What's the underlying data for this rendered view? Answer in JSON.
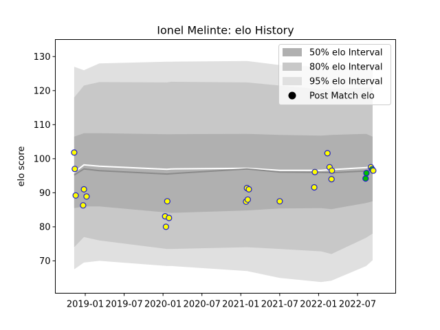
{
  "chart_data": {
    "type": "line",
    "title": "Ionel Melinte: elo History",
    "xlabel": "",
    "ylabel": "elo score",
    "ylim": [
      60.5,
      135
    ],
    "x_tick_labels": [
      "2019-01",
      "2019-07",
      "2020-01",
      "2020-07",
      "2021-01",
      "2021-07",
      "2022-01",
      "2022-07"
    ],
    "y_ticks": [
      70,
      80,
      90,
      100,
      110,
      120,
      130
    ],
    "grid": false,
    "legend_position": "top-right",
    "legend": [
      {
        "label": "50% elo Interval",
        "kind": "patch",
        "color": "#b0b0b0"
      },
      {
        "label": "80% elo Interval",
        "kind": "patch",
        "color": "#c8c8c8"
      },
      {
        "label": "95% elo Interval",
        "kind": "patch",
        "color": "#e0e0e0"
      },
      {
        "label": "Post Match elo",
        "kind": "marker",
        "color": "#000000"
      }
    ],
    "x_dates": [
      "2018-11-09",
      "2018-12-25",
      "2019-03-07",
      "2020-01-18",
      "2020-02-08",
      "2021-01-28",
      "2021-07-01",
      "2022-01-11",
      "2022-03-01",
      "2022-08-11",
      "2022-09-10"
    ],
    "bands": {
      "p95_upper": [
        127,
        126,
        128,
        128.5,
        128.5,
        128.7,
        127.5,
        127,
        126.8,
        127.5,
        128
      ],
      "p95_lower": [
        67.5,
        69.5,
        70,
        68.5,
        68.5,
        67,
        65,
        63.8,
        64.2,
        68.5,
        70.2
      ],
      "p80_upper": [
        118,
        121.5,
        122.5,
        122.4,
        122.6,
        122.4,
        121.5,
        120.4,
        120.5,
        120.8,
        121
      ],
      "p80_lower": [
        74,
        77,
        76,
        73.5,
        73.5,
        74,
        73.5,
        72.8,
        72,
        76.8,
        78
      ],
      "p50_upper": [
        106.5,
        107.5,
        107.5,
        107.2,
        107.2,
        107.3,
        107,
        106.8,
        107,
        107.3,
        106.5
      ],
      "p50_lower": [
        85.5,
        86,
        86,
        84.2,
        84.1,
        84.8,
        85.4,
        85.5,
        85.2,
        87,
        87.5
      ]
    },
    "series": [
      {
        "name": "mean line",
        "color": "#ffffff",
        "values": [
          96,
          98.2,
          97.8,
          96.9,
          97,
          97.2,
          96.6,
          96.6,
          96.8,
          97.4,
          97.8
        ]
      },
      {
        "name": "median line",
        "color": "#8a8a8a",
        "values": [
          95.2,
          97,
          96.5,
          95.5,
          95.6,
          97,
          96.1,
          96,
          95.9,
          96.4,
          96.8
        ]
      }
    ],
    "points": [
      {
        "x": "2018-11-09",
        "y": 101.8,
        "color": "#ffff00"
      },
      {
        "x": "2018-11-12",
        "y": 97,
        "color": "#ffff00"
      },
      {
        "x": "2018-11-16",
        "y": 89.2,
        "color": "#ffff00"
      },
      {
        "x": "2018-12-21",
        "y": 86.3,
        "color": "#ffff00"
      },
      {
        "x": "2018-12-25",
        "y": 91,
        "color": "#ffff00"
      },
      {
        "x": "2019-01-06",
        "y": 88.9,
        "color": "#ffff00"
      },
      {
        "x": "2020-01-10",
        "y": 83.1,
        "color": "#ffff00"
      },
      {
        "x": "2020-01-14",
        "y": 80,
        "color": "#ffff00"
      },
      {
        "x": "2020-01-20",
        "y": 87.5,
        "color": "#ffff00"
      },
      {
        "x": "2020-01-28",
        "y": 82.6,
        "color": "#ffff00"
      },
      {
        "x": "2021-01-24",
        "y": 87.4,
        "color": "#ffff00"
      },
      {
        "x": "2021-01-28",
        "y": 91.4,
        "color": "#ffff00"
      },
      {
        "x": "2021-02-01",
        "y": 88,
        "color": "#ffff00"
      },
      {
        "x": "2021-02-06",
        "y": 91,
        "color": "#ffff00"
      },
      {
        "x": "2021-07-01",
        "y": 87.5,
        "color": "#ffff00"
      },
      {
        "x": "2021-12-10",
        "y": 91.6,
        "color": "#ffff00"
      },
      {
        "x": "2021-12-13",
        "y": 96.1,
        "color": "#ffff00"
      },
      {
        "x": "2022-02-10",
        "y": 101.6,
        "color": "#ffff00"
      },
      {
        "x": "2022-02-20",
        "y": 97.5,
        "color": "#ffff00"
      },
      {
        "x": "2022-03-01",
        "y": 94,
        "color": "#ffff00"
      },
      {
        "x": "2022-03-03",
        "y": 96.5,
        "color": "#ffff00"
      },
      {
        "x": "2022-08-08",
        "y": 94.2,
        "color": "#00c000"
      },
      {
        "x": "2022-08-12",
        "y": 95.8,
        "color": "#00c000"
      },
      {
        "x": "2022-09-02",
        "y": 97.5,
        "color": "#ffff00"
      },
      {
        "x": "2022-09-08",
        "y": 96.9,
        "color": "#00c000"
      },
      {
        "x": "2022-09-13",
        "y": 96.5,
        "color": "#ffff00"
      }
    ]
  }
}
